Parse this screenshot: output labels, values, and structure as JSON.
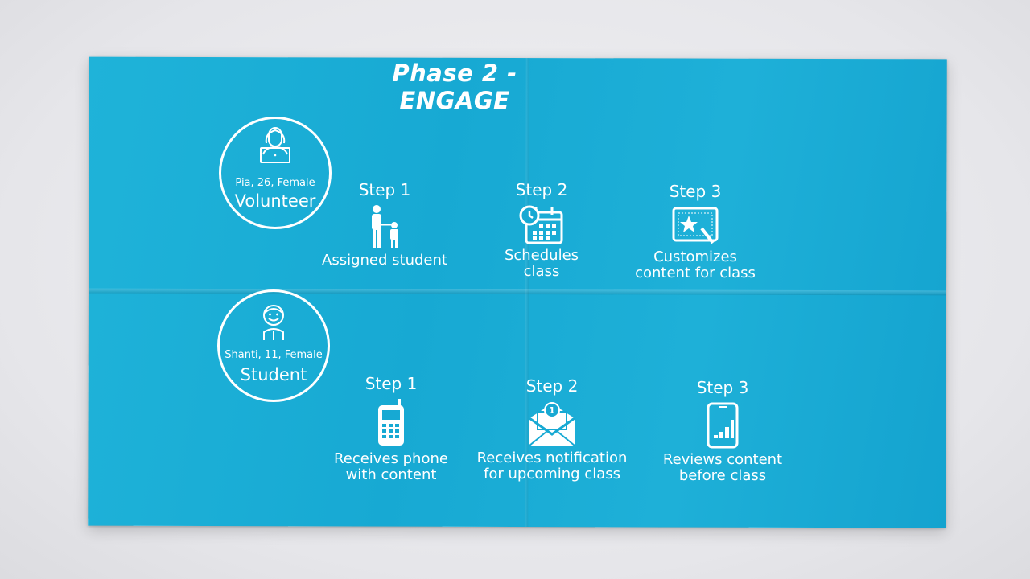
{
  "title": "Phase 2 - ENGAGE",
  "volunteer": {
    "meta": "Pia, 26, Female",
    "role": "Volunteer",
    "steps": [
      {
        "label": "Step 1",
        "desc": "Assigned student",
        "icon": "parent-child-icon"
      },
      {
        "label": "Step 2",
        "desc": "Schedules class",
        "icon": "calendar-clock-icon"
      },
      {
        "label": "Step 3",
        "desc": "Customizes content for class",
        "icon": "tablet-star-icon"
      }
    ]
  },
  "student": {
    "meta": "Shanti, 11, Female",
    "role": "Student",
    "steps": [
      {
        "label": "Step 1",
        "desc": "Receives phone with content",
        "icon": "phone-icon"
      },
      {
        "label": "Step 2",
        "desc": "Receives notification for upcoming class",
        "icon": "envelope-notification-icon"
      },
      {
        "label": "Step 3",
        "desc": "Reviews content before class",
        "icon": "smartphone-chart-icon"
      }
    ]
  },
  "colors": {
    "paper": "#17a9d3",
    "text": "#ffffff",
    "background": "#e8e8ec"
  }
}
